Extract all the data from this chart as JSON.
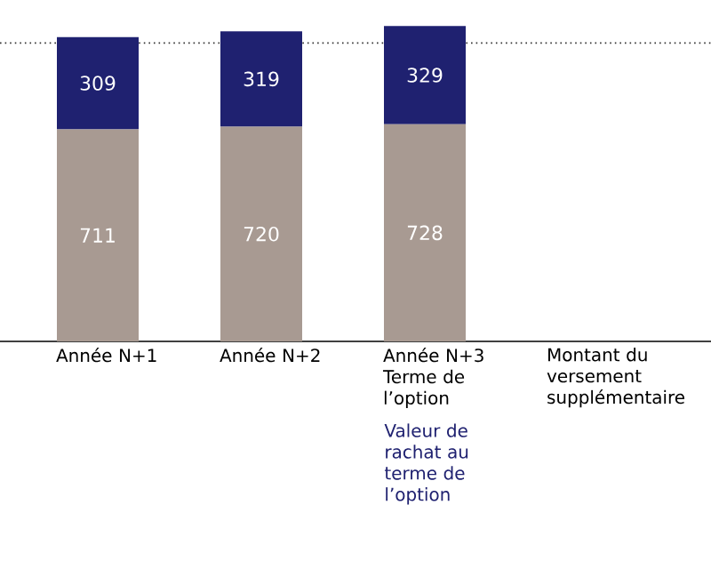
{
  "chart_data": {
    "type": "bar",
    "stacked": true,
    "categories": [
      "Année N+1",
      "Année N+2",
      "Année N+3 Terme de l’option",
      "Montant du versement supplémentaire"
    ],
    "series": [
      {
        "color": "#a89a92",
        "values": [
          711,
          720,
          728,
          null
        ]
      },
      {
        "color": "#1f2170",
        "values": [
          309,
          319,
          329,
          null
        ]
      }
    ],
    "data_labels": true,
    "ref_lines": [
      {
        "axis": "y",
        "value": 1000,
        "color": "#333333",
        "line_style": "dotted"
      }
    ],
    "annotations": [
      "Valeur de rachat au terme de l’option"
    ]
  }
}
